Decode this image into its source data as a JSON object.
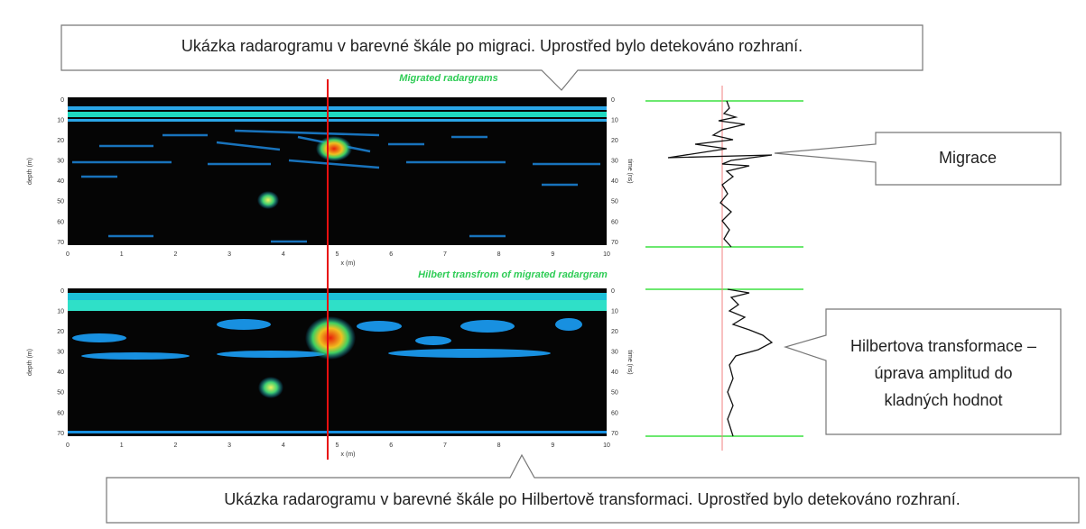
{
  "callouts": {
    "top": "Ukázka radarogramu v barevné škále po migraci. Uprostřed bylo detekováno rozhraní.",
    "migration": "Migrace",
    "hilbert": [
      "Hilbertova transformace –",
      "úprava amplitud do",
      "kladných hodnot"
    ],
    "bottom": "Ukázka radarogramu v barevné škále po Hilbertově transformaci. Uprostřed bylo detekováno rozhraní."
  },
  "panels": [
    {
      "title": "Migrated radargrams",
      "x_label": "x (m)",
      "y_label": "depth (m)",
      "right_label": "time (ns)",
      "xticks": [
        "0",
        "1",
        "2",
        "3",
        "4",
        "5",
        "6",
        "7",
        "8",
        "9",
        "10"
      ],
      "yticks": [
        "0",
        "10",
        "20",
        "30",
        "40",
        "50",
        "60",
        "70"
      ]
    },
    {
      "title": "Hilbert transfrom of migrated radargram",
      "x_label": "x (m)",
      "y_label": "depth (m)",
      "right_label": "time (ns)",
      "xticks": [
        "0",
        "1",
        "2",
        "3",
        "4",
        "5",
        "6",
        "7",
        "8",
        "9",
        "10"
      ],
      "yticks": [
        "0",
        "10",
        "20",
        "30",
        "40",
        "50",
        "60",
        "70"
      ]
    }
  ]
}
